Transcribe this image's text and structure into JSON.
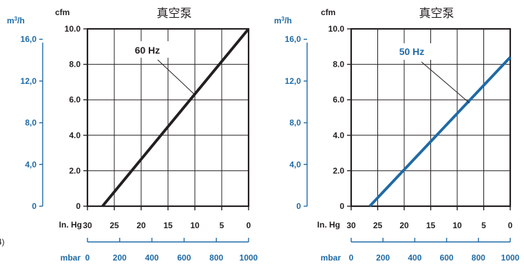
{
  "page_fragment": "4)",
  "charts": [
    {
      "title": "真空泵",
      "annotation": "60 Hz",
      "left_axis_outer_unit": "m³/h",
      "left_axis_inner_unit": "cfm",
      "bottom_axis_inner_unit": "In. Hg",
      "bottom_axis_outer_unit": "mbar",
      "cfm_ticks": [
        "0",
        "2.0",
        "4.0",
        "6.0",
        "8.0",
        "10.0"
      ],
      "m3h_ticks": [
        "0",
        "4,0",
        "8,0",
        "12,0",
        "16,0"
      ],
      "inhg_ticks": [
        "30",
        "25",
        "20",
        "15",
        "10",
        "5",
        "0"
      ],
      "mbar_ticks": [
        "0",
        "200",
        "400",
        "600",
        "800",
        "1000"
      ]
    },
    {
      "title": "真空泵",
      "annotation": "50 Hz",
      "left_axis_outer_unit": "m³/h",
      "left_axis_inner_unit": "cfm",
      "bottom_axis_inner_unit": "In. Hg",
      "bottom_axis_outer_unit": "mbar",
      "cfm_ticks": [
        "0",
        "2.0",
        "4.0",
        "6.0",
        "8.0",
        "10.0"
      ],
      "m3h_ticks": [
        "0",
        "4,0",
        "8,0",
        "12,0",
        "16,0"
      ],
      "inhg_ticks": [
        "30",
        "25",
        "20",
        "15",
        "10",
        "5",
        "0"
      ],
      "mbar_ticks": [
        "0",
        "200",
        "400",
        "600",
        "800",
        "1000"
      ]
    }
  ],
  "colors": {
    "accent_blue": "#1f6aa5",
    "line_60hz": "#231f20",
    "line_50hz": "#1f6aa5",
    "grid": "#231f20"
  },
  "chart_data": [
    {
      "type": "line",
      "title": "真空泵",
      "xlabel": "In. Hg",
      "xlabel_secondary": "mbar",
      "ylabel": "cfm",
      "ylabel_secondary": "m³/h",
      "xlim": [
        30,
        0
      ],
      "ylim": [
        0,
        10
      ],
      "x_secondary_lim": [
        0,
        1000
      ],
      "y_secondary_lim": [
        0,
        17
      ],
      "grid": true,
      "series": [
        {
          "name": "60 Hz",
          "x": [
            27.2,
            0
          ],
          "y": [
            0,
            10.0
          ]
        }
      ]
    },
    {
      "type": "line",
      "title": "真空泵",
      "xlabel": "In. Hg",
      "xlabel_secondary": "mbar",
      "ylabel": "cfm",
      "ylabel_secondary": "m³/h",
      "xlim": [
        30,
        0
      ],
      "ylim": [
        0,
        10
      ],
      "x_secondary_lim": [
        0,
        1000
      ],
      "y_secondary_lim": [
        0,
        17
      ],
      "grid": true,
      "series": [
        {
          "name": "50 Hz",
          "x": [
            26.5,
            0
          ],
          "y": [
            0,
            8.4
          ]
        }
      ]
    }
  ]
}
